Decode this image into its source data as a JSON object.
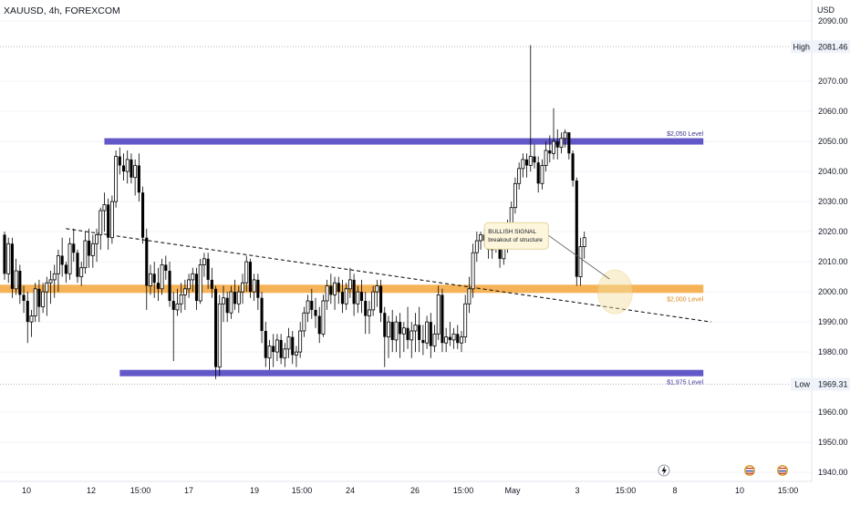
{
  "symbol_title": "XAUUSD, 4h, FOREXCOM",
  "currency": "USD",
  "colors": {
    "candle": "#000000",
    "background": "#ffffff",
    "zone_purple": "#5b4fc4",
    "zone_orange": "#f5a43a",
    "annotation_bg": "#fdf6dc",
    "annotation_border": "#e6d49a",
    "grid": "#f0f3fa",
    "trendline": "#000000"
  },
  "chart_data": {
    "type": "candlestick",
    "symbol": "XAUUSD",
    "timeframe": "4h",
    "source": "FOREXCOM",
    "ylim": [
      1937,
      2097
    ],
    "y_ticks": [
      2090,
      2070,
      2060,
      2050,
      2040,
      2030,
      2020,
      2010,
      2000,
      1990,
      1980,
      1960,
      1950,
      1940
    ],
    "y_tick_labels": [
      "2090.00",
      "2070.00",
      "2060.00",
      "2050.00",
      "2040.00",
      "2030.00",
      "2020.00",
      "2010.00",
      "2000.00",
      "1990.00",
      "1980.00",
      "1960.00",
      "1950.00",
      "1940.00"
    ],
    "x_tick_labels": [
      "10",
      "12",
      "15:00",
      "17",
      "19",
      "15:00",
      "24",
      "26",
      "15:00",
      "May",
      "3",
      "15:00",
      "8",
      "10",
      "15:00"
    ],
    "high_marker": {
      "label": "High",
      "value": 2081.46,
      "text": "2081.46"
    },
    "low_marker": {
      "label": "Low",
      "value": 1969.31,
      "text": "1969.31"
    },
    "levels": [
      {
        "name": "$2,050 Level",
        "value": 2050,
        "color": "purple"
      },
      {
        "name": "$2,000 Level",
        "value": 2001,
        "color": "orange"
      },
      {
        "name": "$1,975 Level",
        "value": 1973,
        "color": "purple"
      }
    ],
    "trendline": {
      "from": {
        "candle": 16,
        "value": 2021
      },
      "to": {
        "candle": 184,
        "value": 1990
      },
      "style": "dashed"
    },
    "annotation": {
      "line1": "BULLISH SIGNAL",
      "line2": "breakout of structure",
      "target_candle": 159,
      "target_value": 2000
    },
    "candles": [
      [
        2019,
        2020,
        2004,
        2006
      ],
      [
        2006,
        2018,
        2003,
        2016
      ],
      [
        2016,
        2018,
        1998,
        2001
      ],
      [
        2001,
        2011,
        1999,
        2007
      ],
      [
        2007,
        2009,
        1996,
        1999
      ],
      [
        1999,
        2002,
        1993,
        1997
      ],
      [
        1997,
        2000,
        1983,
        1990
      ],
      [
        1990,
        1994,
        1985,
        1992
      ],
      [
        1992,
        2003,
        1990,
        2001
      ],
      [
        2001,
        2004,
        1990,
        1995
      ],
      [
        1995,
        2003,
        1993,
        2000
      ],
      [
        2000,
        2005,
        1992,
        2003
      ],
      [
        2003,
        2007,
        1996,
        2004
      ],
      [
        2004,
        2009,
        1998,
        2006
      ],
      [
        2006,
        2014,
        2000,
        2012
      ],
      [
        2012,
        2018,
        2005,
        2009
      ],
      [
        2009,
        2010,
        2003,
        2006
      ],
      [
        2006,
        2018,
        2004,
        2016
      ],
      [
        2016,
        2021,
        2010,
        2013
      ],
      [
        2013,
        2014,
        2003,
        2005
      ],
      [
        2005,
        2010,
        2002,
        2008
      ],
      [
        2008,
        2020,
        2006,
        2017
      ],
      [
        2017,
        2021,
        2008,
        2012
      ],
      [
        2012,
        2019,
        2008,
        2016
      ],
      [
        2016,
        2021,
        2010,
        2019
      ],
      [
        2019,
        2028,
        2014,
        2027
      ],
      [
        2027,
        2033,
        2020,
        2029
      ],
      [
        2029,
        2031,
        2014,
        2018
      ],
      [
        2018,
        2032,
        2016,
        2030
      ],
      [
        2030,
        2047,
        2028,
        2045
      ],
      [
        2045,
        2048,
        2039,
        2042
      ],
      [
        2042,
        2046,
        2037,
        2040
      ],
      [
        2040,
        2047,
        2036,
        2044
      ],
      [
        2044,
        2046,
        2036,
        2038
      ],
      [
        2038,
        2044,
        2032,
        2042
      ],
      [
        2042,
        2046,
        2030,
        2033
      ],
      [
        2033,
        2035,
        2016,
        2018
      ],
      [
        2018,
        2021,
        1994,
        2002
      ],
      [
        2002,
        2009,
        1999,
        2006
      ],
      [
        2006,
        2010,
        1998,
        2003
      ],
      [
        2003,
        2008,
        1997,
        2001
      ],
      [
        2001,
        2011,
        1999,
        2009
      ],
      [
        2009,
        2012,
        2004,
        2007
      ],
      [
        2007,
        2010,
        1995,
        1997
      ],
      [
        1997,
        2000,
        1977,
        1994
      ],
      [
        1994,
        2001,
        1992,
        1996
      ],
      [
        1996,
        2003,
        1993,
        1999
      ],
      [
        1999,
        2004,
        1994,
        2001
      ],
      [
        2001,
        2006,
        1998,
        2004
      ],
      [
        2004,
        2008,
        2000,
        2006
      ],
      [
        2006,
        2008,
        1994,
        1997
      ],
      [
        1997,
        2011,
        1996,
        2009
      ],
      [
        2009,
        2013,
        2005,
        2011
      ],
      [
        2011,
        2013,
        2001,
        2004
      ],
      [
        2004,
        2008,
        1998,
        2001
      ],
      [
        2001,
        2002,
        1971,
        1975
      ],
      [
        1975,
        1999,
        1972,
        1996
      ],
      [
        1996,
        2002,
        1990,
        1998
      ],
      [
        1998,
        2000,
        1990,
        1993
      ],
      [
        1993,
        2002,
        1991,
        2000
      ],
      [
        2000,
        2004,
        1994,
        1996
      ],
      [
        1996,
        2002,
        1993,
        2000
      ],
      [
        2000,
        2006,
        1996,
        2003
      ],
      [
        2003,
        2012,
        2000,
        2010
      ],
      [
        2010,
        2011,
        1998,
        2000
      ],
      [
        2000,
        2006,
        1997,
        2004
      ],
      [
        2004,
        2006,
        1994,
        1998
      ],
      [
        1998,
        2000,
        1983,
        1987
      ],
      [
        1987,
        1990,
        1975,
        1978
      ],
      [
        1978,
        1984,
        1974,
        1982
      ],
      [
        1982,
        1986,
        1975,
        1980
      ],
      [
        1980,
        1986,
        1977,
        1984
      ],
      [
        1984,
        1986,
        1976,
        1978
      ],
      [
        1978,
        1983,
        1975,
        1981
      ],
      [
        1981,
        1988,
        1978,
        1985
      ],
      [
        1985,
        1987,
        1976,
        1979
      ],
      [
        1979,
        1982,
        1975,
        1980
      ],
      [
        1980,
        1990,
        1978,
        1987
      ],
      [
        1987,
        1995,
        1985,
        1993
      ],
      [
        1993,
        1999,
        1990,
        1997
      ],
      [
        1997,
        2001,
        1991,
        1994
      ],
      [
        1994,
        1998,
        1988,
        1992
      ],
      [
        1992,
        1995,
        1983,
        1986
      ],
      [
        1986,
        1999,
        1985,
        1997
      ],
      [
        1997,
        2004,
        1994,
        2002
      ],
      [
        2002,
        2006,
        1996,
        1999
      ],
      [
        1999,
        2005,
        1994,
        2003
      ],
      [
        2003,
        2005,
        1996,
        2000
      ],
      [
        2000,
        2004,
        1993,
        1996
      ],
      [
        1996,
        2003,
        1994,
        2001
      ],
      [
        2001,
        2008,
        1998,
        2004
      ],
      [
        2004,
        2006,
        1992,
        1996
      ],
      [
        1996,
        2002,
        1993,
        2000
      ],
      [
        2000,
        2004,
        1993,
        1997
      ],
      [
        1997,
        2000,
        1986,
        1992
      ],
      [
        1992,
        1997,
        1986,
        1994
      ],
      [
        1994,
        2002,
        1992,
        2000
      ],
      [
        2000,
        2004,
        1995,
        2002
      ],
      [
        2002,
        2004,
        1990,
        1993
      ],
      [
        1993,
        1995,
        1975,
        1985
      ],
      [
        1985,
        1992,
        1978,
        1990
      ],
      [
        1990,
        1994,
        1980,
        1984
      ],
      [
        1984,
        1992,
        1980,
        1990
      ],
      [
        1990,
        1993,
        1978,
        1986
      ],
      [
        1986,
        1990,
        1980,
        1988
      ],
      [
        1988,
        1995,
        1981,
        1984
      ],
      [
        1984,
        1990,
        1978,
        1987
      ],
      [
        1987,
        1993,
        1980,
        1989
      ],
      [
        1989,
        1995,
        1980,
        1984
      ],
      [
        1984,
        1989,
        1979,
        1983
      ],
      [
        1983,
        1992,
        1981,
        1990
      ],
      [
        1990,
        1993,
        1978,
        1982
      ],
      [
        1982,
        1989,
        1980,
        1986
      ],
      [
        1986,
        2002,
        1984,
        1999
      ],
      [
        1999,
        2001,
        1980,
        1983
      ],
      [
        1983,
        1988,
        1980,
        1985
      ],
      [
        1985,
        1990,
        1982,
        1984
      ],
      [
        1984,
        1988,
        1981,
        1986
      ],
      [
        1986,
        1989,
        1981,
        1983
      ],
      [
        1983,
        1987,
        1980,
        1985
      ],
      [
        1985,
        1999,
        1983,
        1996
      ],
      [
        1996,
        2005,
        1993,
        2001
      ],
      [
        2001,
        2016,
        1998,
        2013
      ],
      [
        2013,
        2020,
        2010,
        2017
      ],
      [
        2017,
        2020,
        2014,
        2019
      ],
      [
        2019,
        2021,
        2015,
        2017
      ],
      [
        2017,
        2019,
        2011,
        2014
      ],
      [
        2014,
        2019,
        2011,
        2017
      ],
      [
        2017,
        2021,
        2013,
        2016
      ],
      [
        2016,
        2018,
        2008,
        2011
      ],
      [
        2011,
        2017,
        2009,
        2015
      ],
      [
        2015,
        2024,
        2013,
        2022
      ],
      [
        2022,
        2030,
        2020,
        2028
      ],
      [
        2028,
        2038,
        2026,
        2036
      ],
      [
        2036,
        2043,
        2034,
        2041
      ],
      [
        2041,
        2046,
        2038,
        2044
      ],
      [
        2044,
        2046,
        2038,
        2042
      ],
      [
        2042,
        2082,
        2040,
        2045
      ],
      [
        2045,
        2049,
        2041,
        2043
      ],
      [
        2043,
        2045,
        2033,
        2036
      ],
      [
        2036,
        2044,
        2034,
        2042
      ],
      [
        2042,
        2050,
        2040,
        2047
      ],
      [
        2047,
        2052,
        2043,
        2046
      ],
      [
        2046,
        2061,
        2044,
        2050
      ],
      [
        2050,
        2054,
        2044,
        2048
      ],
      [
        2048,
        2053,
        2046,
        2051
      ],
      [
        2051,
        2054,
        2048,
        2053
      ],
      [
        2053,
        2053,
        2044,
        2046
      ],
      [
        2046,
        2047,
        2035,
        2037
      ],
      [
        2037,
        2038,
        2002,
        2005
      ],
      [
        2005,
        2018,
        2002,
        2015
      ],
      [
        2015,
        2020,
        2011,
        2018
      ]
    ]
  }
}
